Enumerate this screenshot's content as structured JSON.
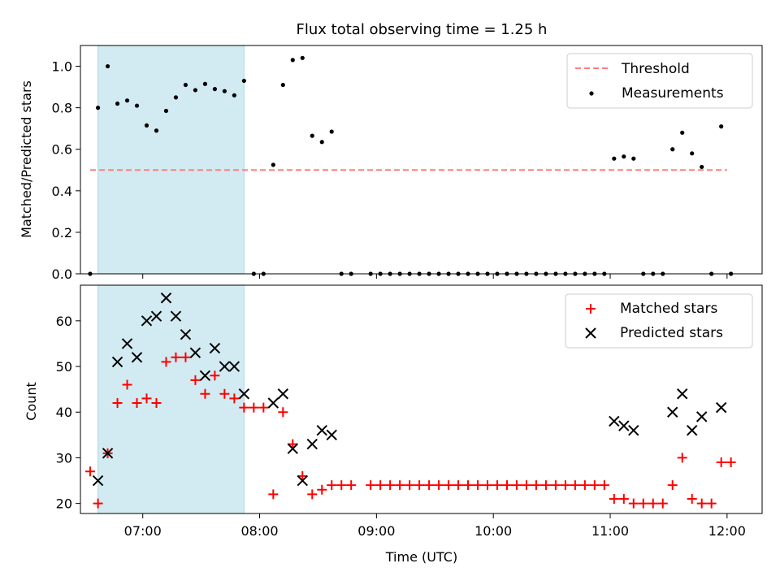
{
  "figure_title": "Flux total observing time = 1.25 h",
  "colors": {
    "highlight": "#add8e6",
    "threshold": "#ff7f7f",
    "measurement": "#000000",
    "matched": "#ff0000",
    "predicted": "#000000"
  },
  "chart_data": [
    {
      "type": "scatter",
      "title": "Flux total observing time = 1.25 h",
      "xlabel": "",
      "ylabel": "Matched/Predicted stars",
      "x_ticks": [
        "07:00",
        "08:00",
        "09:00",
        "10:00",
        "11:00",
        "12:00"
      ],
      "y_ticks": [
        "0.0",
        "0.2",
        "0.4",
        "0.6",
        "0.8",
        "1.0"
      ],
      "xlim": [
        "06:28",
        "12:18"
      ],
      "ylim": [
        0,
        1.1
      ],
      "highlight_span": [
        "06:37",
        "07:52"
      ],
      "threshold": {
        "name": "Threshold",
        "value": 0.5,
        "x_range": [
          "06:33",
          "12:00"
        ]
      },
      "legend": {
        "position": "upper right",
        "threshold_label": "Threshold",
        "measurements_label": "Measurements"
      },
      "series": [
        {
          "name": "Measurements",
          "x": [
            "06:33",
            "06:37",
            "06:42",
            "06:47",
            "06:52",
            "06:57",
            "07:02",
            "07:07",
            "07:12",
            "07:17",
            "07:22",
            "07:27",
            "07:32",
            "07:37",
            "07:42",
            "07:47",
            "07:52",
            "07:57",
            "08:02",
            "08:07",
            "08:12",
            "08:17",
            "08:22",
            "08:27",
            "08:32",
            "08:37",
            "08:42",
            "08:47",
            "08:57",
            "09:02",
            "09:07",
            "09:12",
            "09:17",
            "09:22",
            "09:27",
            "09:32",
            "09:37",
            "09:42",
            "09:47",
            "09:52",
            "09:57",
            "10:02",
            "10:07",
            "10:12",
            "10:17",
            "10:22",
            "10:27",
            "10:32",
            "10:37",
            "10:42",
            "10:47",
            "10:52",
            "10:57",
            "11:02",
            "11:07",
            "11:12",
            "11:17",
            "11:22",
            "11:27",
            "11:32",
            "11:37",
            "11:42",
            "11:47",
            "11:52",
            "11:57",
            "12:02"
          ],
          "y": [
            0.0,
            0.8,
            1.0,
            0.82,
            0.835,
            0.81,
            0.715,
            0.69,
            0.785,
            0.85,
            0.91,
            0.885,
            0.915,
            0.89,
            0.88,
            0.86,
            0.93,
            0.0,
            0.0,
            0.525,
            0.91,
            1.03,
            1.04,
            0.665,
            0.635,
            0.685,
            0.0,
            0.0,
            0.0,
            0.0,
            0.0,
            0.0,
            0.0,
            0.0,
            0.0,
            0.0,
            0.0,
            0.0,
            0.0,
            0.0,
            0.0,
            0.0,
            0.0,
            0.0,
            0.0,
            0.0,
            0.0,
            0.0,
            0.0,
            0.0,
            0.0,
            0.0,
            0.0,
            0.555,
            0.565,
            0.555,
            0.0,
            0.0,
            0.0,
            0.6,
            0.68,
            0.58,
            0.515,
            0.0,
            0.71,
            0.0
          ]
        }
      ]
    },
    {
      "type": "scatter",
      "xlabel": "Time (UTC)",
      "ylabel": "Count",
      "x_ticks": [
        "07:00",
        "08:00",
        "09:00",
        "10:00",
        "11:00",
        "12:00"
      ],
      "y_ticks": [
        "20",
        "30",
        "40",
        "50",
        "60"
      ],
      "xlim": [
        "06:28",
        "12:18"
      ],
      "ylim": [
        17.8,
        67.8
      ],
      "highlight_span": [
        "06:37",
        "07:52"
      ],
      "legend": {
        "position": "upper right",
        "matched_label": "Matched stars",
        "predicted_label": "Predicted stars"
      },
      "series": [
        {
          "name": "Matched stars",
          "x": [
            "06:33",
            "06:37",
            "06:42",
            "06:47",
            "06:52",
            "06:57",
            "07:02",
            "07:07",
            "07:12",
            "07:17",
            "07:22",
            "07:27",
            "07:32",
            "07:37",
            "07:42",
            "07:47",
            "07:52",
            "07:57",
            "08:02",
            "08:07",
            "08:12",
            "08:17",
            "08:22",
            "08:27",
            "08:32",
            "08:37",
            "08:42",
            "08:47",
            "08:57",
            "09:02",
            "09:07",
            "09:12",
            "09:17",
            "09:22",
            "09:27",
            "09:32",
            "09:37",
            "09:42",
            "09:47",
            "09:52",
            "09:57",
            "10:02",
            "10:07",
            "10:12",
            "10:17",
            "10:22",
            "10:27",
            "10:32",
            "10:37",
            "10:42",
            "10:47",
            "10:52",
            "10:57",
            "11:02",
            "11:07",
            "11:12",
            "11:17",
            "11:22",
            "11:27",
            "11:32",
            "11:37",
            "11:42",
            "11:47",
            "11:52",
            "11:57",
            "12:02"
          ],
          "y": [
            27,
            20,
            31,
            42,
            46,
            42,
            43,
            42,
            51,
            52,
            52,
            47,
            44,
            48,
            44,
            43,
            41,
            41,
            41,
            22,
            40,
            33,
            26,
            22,
            23,
            24,
            24,
            24,
            24,
            24,
            24,
            24,
            24,
            24,
            24,
            24,
            24,
            24,
            24,
            24,
            24,
            24,
            24,
            24,
            24,
            24,
            24,
            24,
            24,
            24,
            24,
            24,
            24,
            21,
            21,
            20,
            20,
            20,
            20,
            24,
            30,
            21,
            20,
            20,
            29,
            29
          ]
        },
        {
          "name": "Predicted stars",
          "x": [
            "06:37",
            "06:42",
            "06:47",
            "06:52",
            "06:57",
            "07:02",
            "07:07",
            "07:12",
            "07:17",
            "07:22",
            "07:27",
            "07:32",
            "07:37",
            "07:42",
            "07:47",
            "07:52",
            "08:07",
            "08:12",
            "08:17",
            "08:22",
            "08:27",
            "08:32",
            "08:37",
            "11:02",
            "11:07",
            "11:12",
            "11:32",
            "11:37",
            "11:42",
            "11:47",
            "11:57"
          ],
          "y": [
            25,
            31,
            51,
            55,
            52,
            60,
            61,
            65,
            61,
            57,
            53,
            48,
            54,
            50,
            50,
            44,
            42,
            44,
            32,
            25,
            33,
            36,
            35,
            38,
            37,
            36,
            40,
            44,
            36,
            39,
            41
          ]
        }
      ]
    }
  ]
}
